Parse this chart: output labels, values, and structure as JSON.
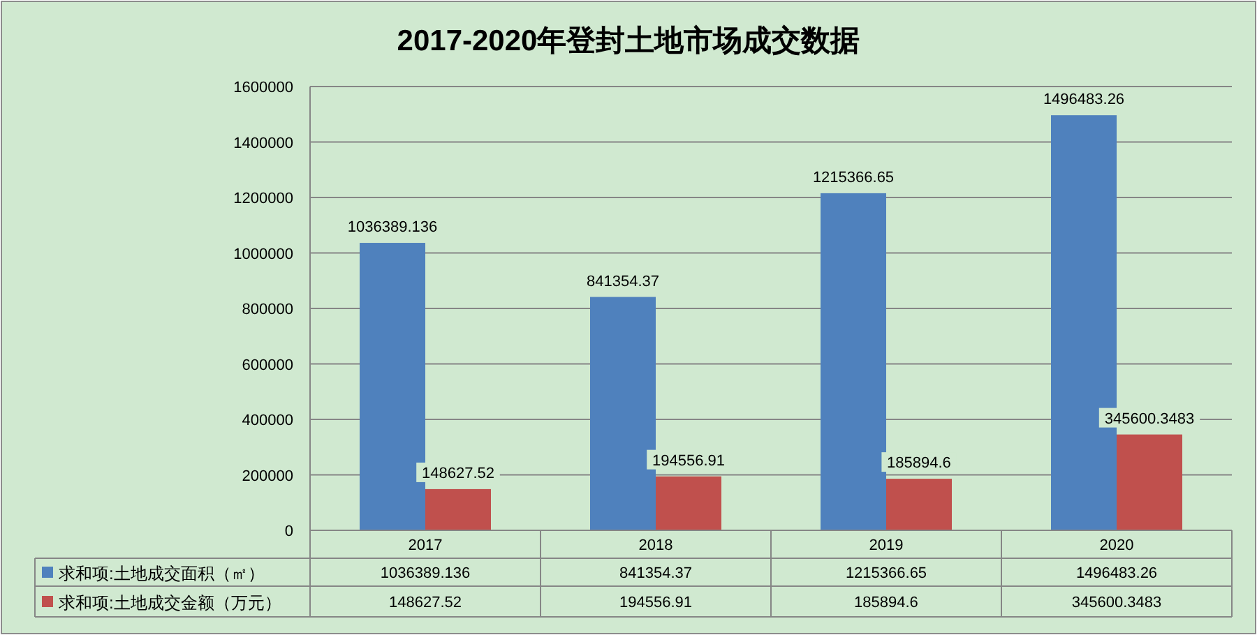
{
  "chart_data": {
    "type": "bar",
    "title": "2017-2020年登封土地市场成交数据",
    "categories": [
      "2017",
      "2018",
      "2019",
      "2020"
    ],
    "series": [
      {
        "name": "求和项:土地成交面积（㎡）",
        "color": "#4f81bd",
        "values": [
          1036389.136,
          841354.37,
          1215366.65,
          1496483.26
        ]
      },
      {
        "name": "求和项:土地成交金额（万元）",
        "color": "#c0504d",
        "values": [
          148627.52,
          194556.91,
          185894.6,
          345600.3483
        ]
      }
    ],
    "ylim": [
      0,
      1600000
    ],
    "yticks": [
      0,
      200000,
      400000,
      600000,
      800000,
      1000000,
      1200000,
      1400000,
      1600000
    ],
    "grid": "y",
    "data_labels": true,
    "legend": "bottom",
    "annotations": [
      "1036389.136",
      "841354.37",
      "1215366.65",
      "1496483.26",
      "148627.52",
      "194556.91",
      "185894.6",
      "345600.3483"
    ]
  }
}
